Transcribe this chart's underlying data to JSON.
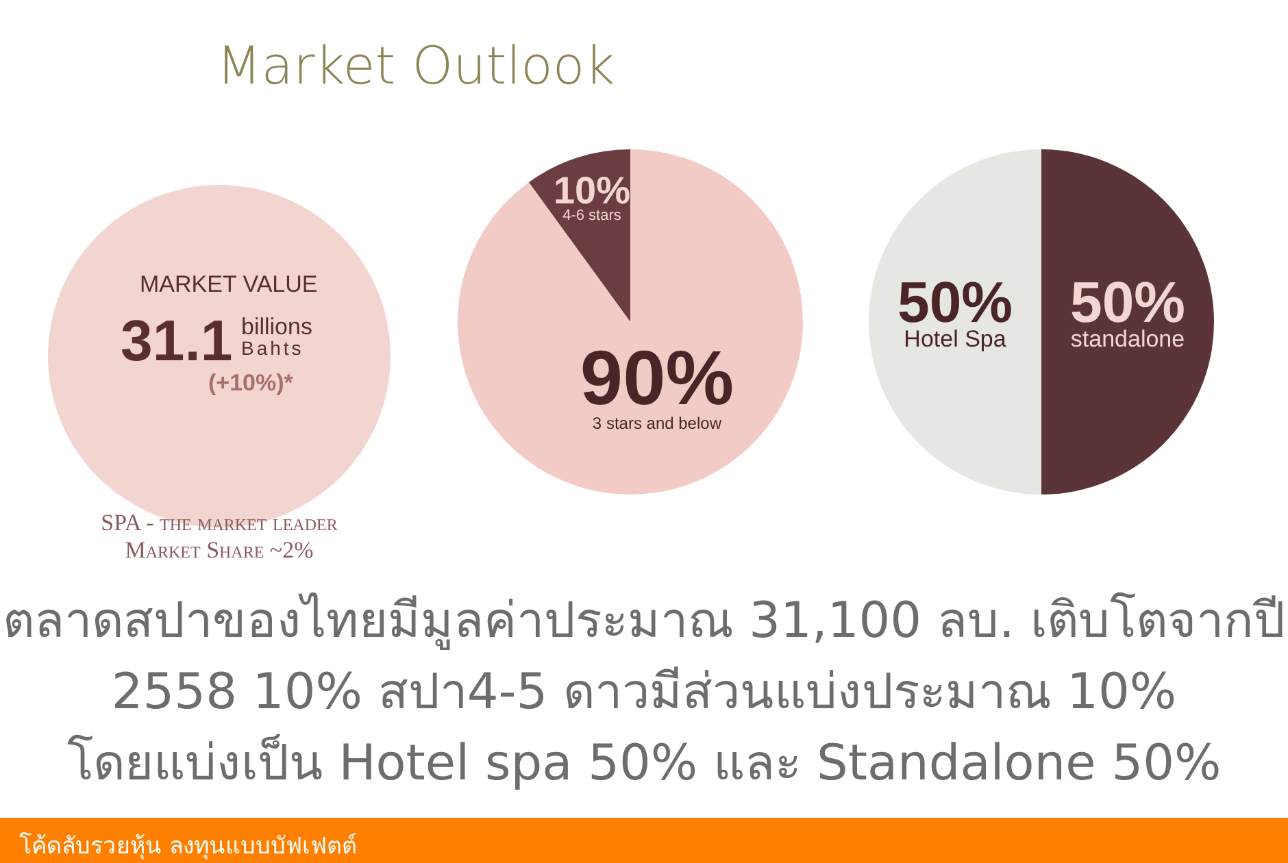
{
  "chart_data": [
    {
      "type": "other",
      "title": "Market Outlook",
      "subtitle": "MARKET VALUE",
      "annotations": [
        "31.1",
        "billions",
        "Bahts",
        "(+10%)*",
        "SPA - the market leader",
        "Market Share ~2%"
      ]
    },
    {
      "type": "pie",
      "categories": [
        "4-6 stars",
        "3 stars and below"
      ],
      "values": [
        10,
        90
      ],
      "colors": [
        "#6b3d40",
        "#f3cbc6"
      ],
      "value_labels": [
        "10%",
        "90%"
      ]
    },
    {
      "type": "pie",
      "categories": [
        "Hotel Spa",
        "standalone"
      ],
      "values": [
        50,
        50
      ],
      "colors": [
        "#e6e6e3",
        "#5a3437"
      ],
      "value_labels": [
        "50%",
        "50%"
      ],
      "annotations": [
        "ตลาดสปาของไทยมีมูลค่าประมาณ 31,100 ลบ. เติบโตจากปี",
        "2558 10% สปา4-5 ดาวมีส่วนแบ่งประมาณ 10%",
        "โดยแบ่งเป็น Hotel spa 50% และ Standalone 50%",
        "โค้ดลับรวยหุ้น ลงทุนแบบบัฟเฟตต์"
      ]
    }
  ]
}
